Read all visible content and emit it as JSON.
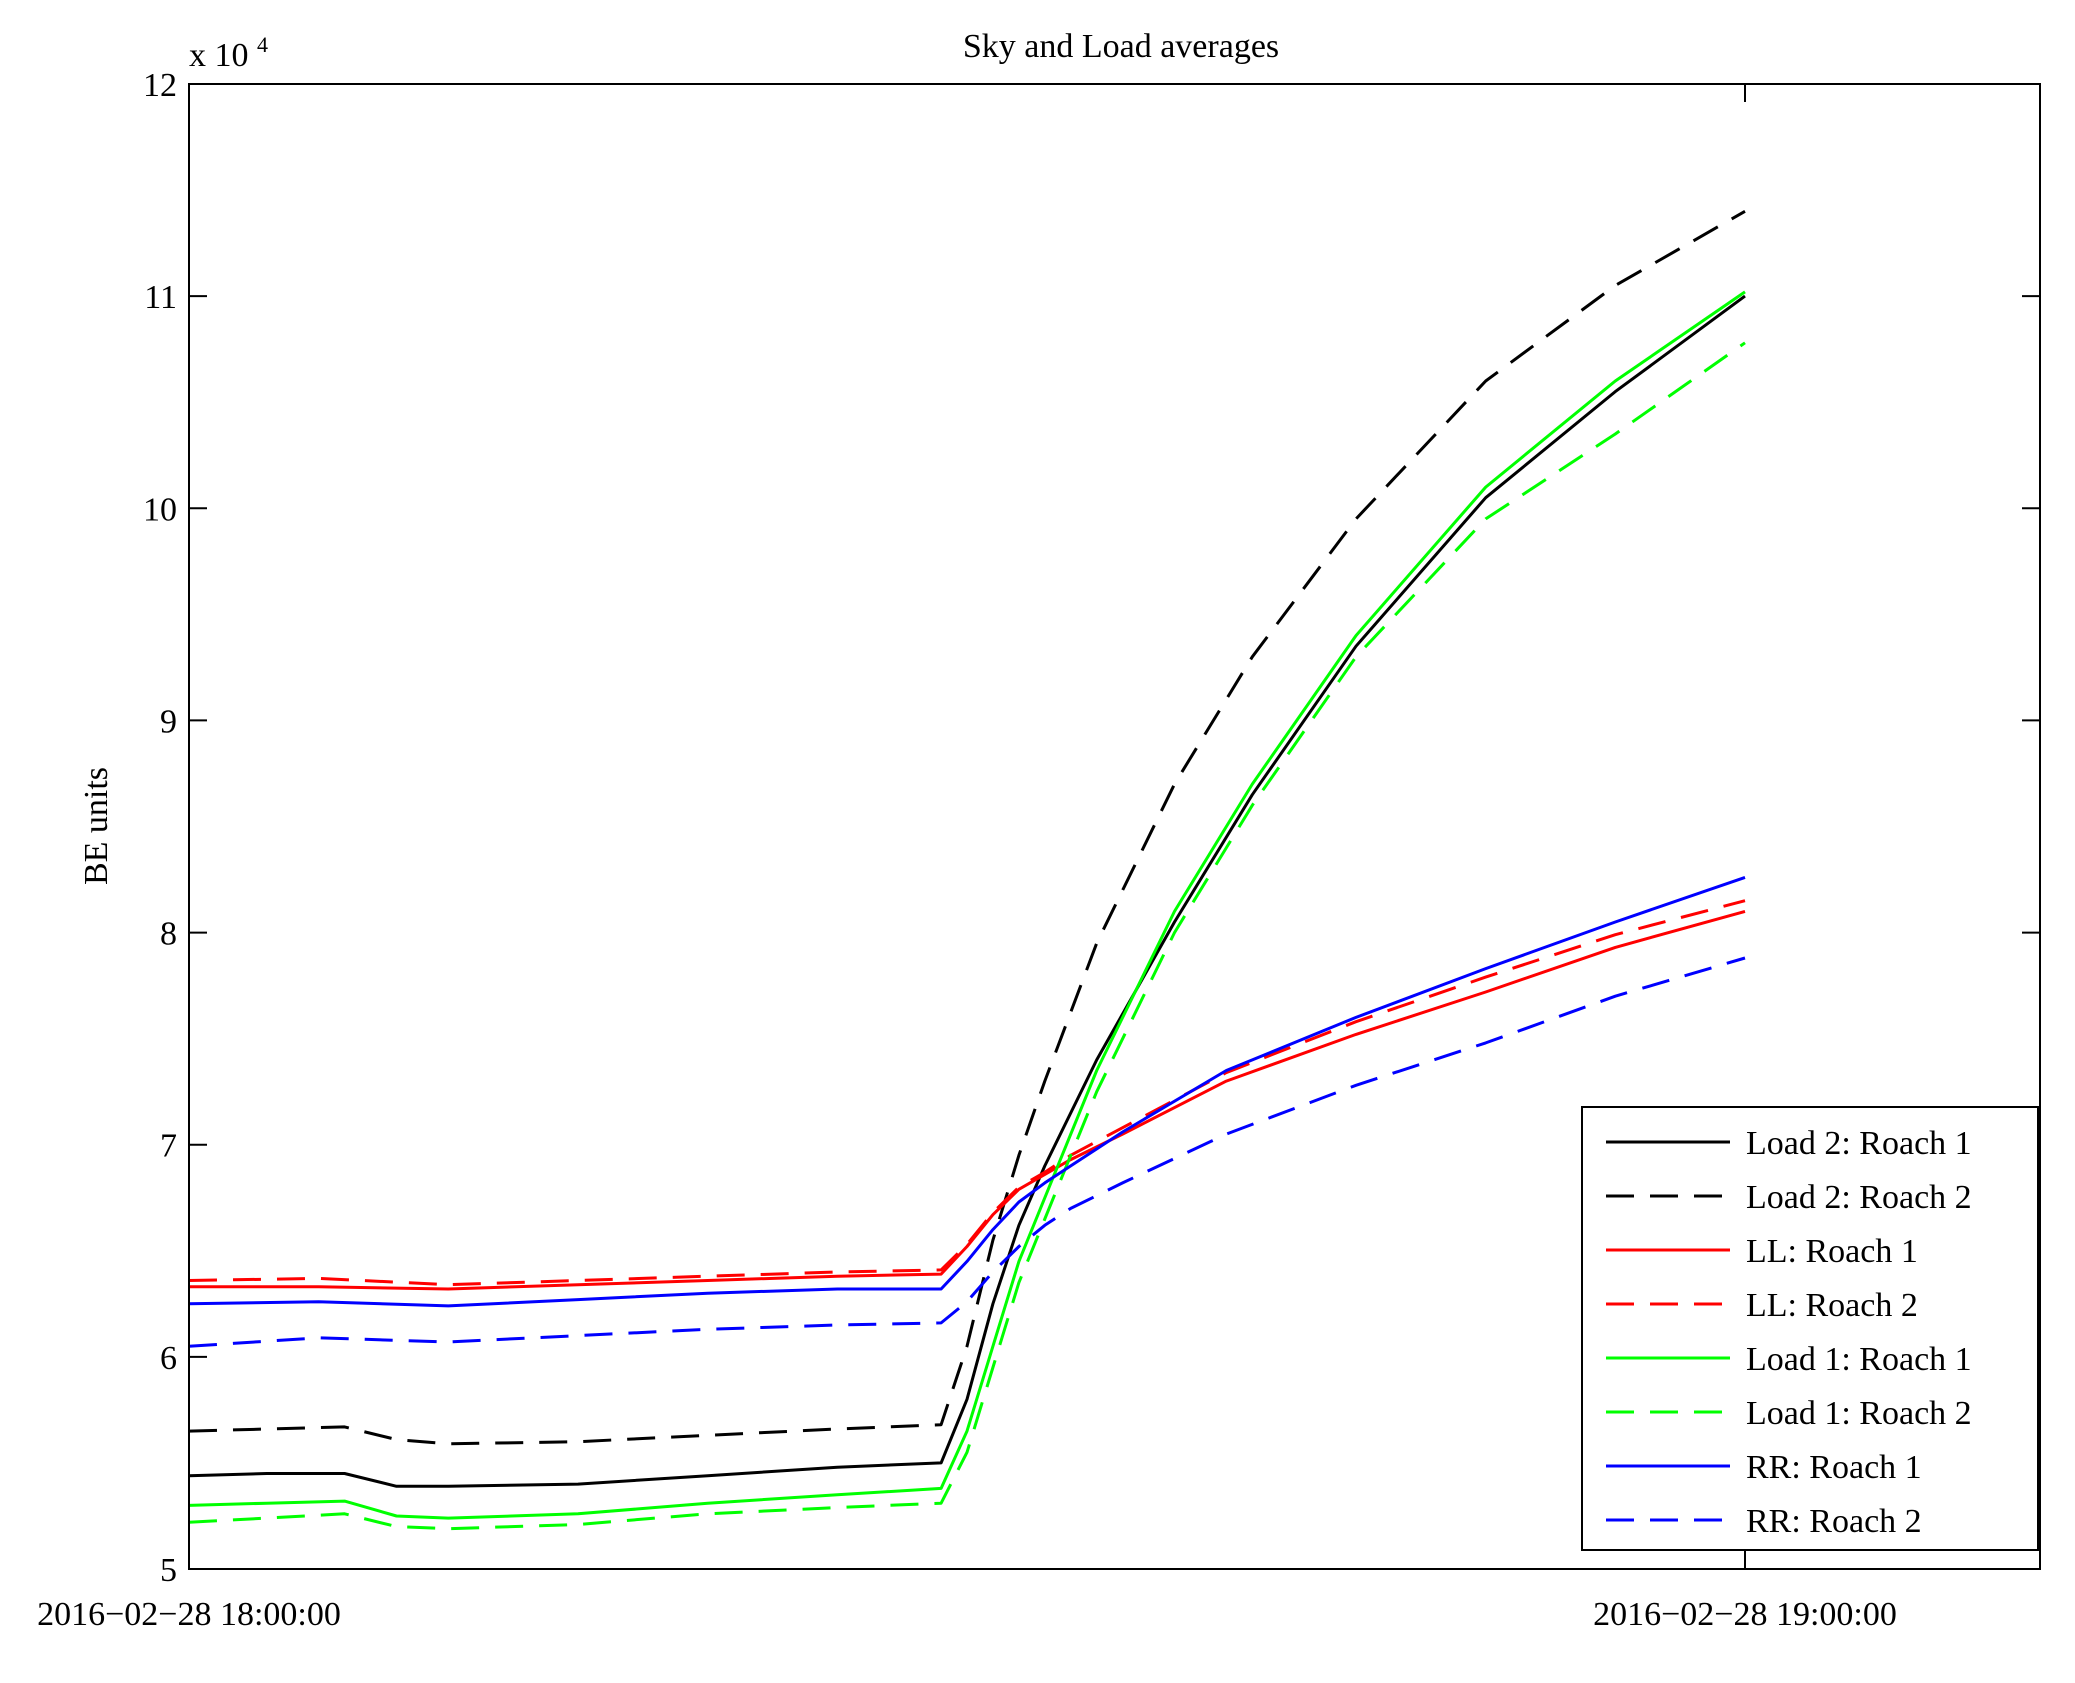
{
  "chart_data": {
    "type": "line",
    "title": "Sky and Load averages",
    "ylabel": "BE units",
    "xlabel": "",
    "y_multiplier_base": "x 10",
    "y_multiplier_exp": "4",
    "ylim": [
      5,
      12
    ],
    "yticks": [
      5,
      6,
      7,
      8,
      9,
      10,
      11,
      12
    ],
    "ytick_labels": [
      "5",
      "6",
      "7",
      "8",
      "9",
      "10",
      "11",
      "12"
    ],
    "xlim": [
      0,
      70
    ],
    "xticks": [
      0,
      60
    ],
    "xtick_labels": [
      "2016−02−28 18:00:00",
      "2016−02−28 19:00:00"
    ],
    "x_units": "minutes after 2016-02-28 18:00:00",
    "legend_position": "bottom-right",
    "series": [
      {
        "name": "Load 2: Roach 1",
        "color": "#000000",
        "dash": "solid",
        "x": [
          0,
          3,
          6,
          8,
          10,
          15,
          20,
          25,
          29,
          30,
          31,
          32,
          33,
          35,
          38,
          41,
          45,
          50,
          55,
          60
        ],
        "y": [
          5.44,
          5.45,
          5.45,
          5.39,
          5.39,
          5.4,
          5.44,
          5.48,
          5.5,
          5.8,
          6.25,
          6.62,
          6.9,
          7.4,
          8.05,
          8.65,
          9.35,
          10.05,
          10.55,
          11.0
        ]
      },
      {
        "name": "Load 2: Roach 2",
        "color": "#000000",
        "dash": "long",
        "x": [
          0,
          3,
          6,
          8,
          10,
          15,
          20,
          25,
          29,
          30,
          31,
          32,
          33,
          35,
          38,
          41,
          45,
          50,
          55,
          60
        ],
        "y": [
          5.65,
          5.66,
          5.67,
          5.61,
          5.59,
          5.6,
          5.63,
          5.66,
          5.68,
          6.05,
          6.55,
          6.95,
          7.3,
          7.95,
          8.7,
          9.3,
          9.95,
          10.6,
          11.05,
          11.4
        ]
      },
      {
        "name": "LL: Roach 1",
        "color": "#ff0000",
        "dash": "solid",
        "x": [
          0,
          5,
          10,
          15,
          20,
          25,
          29,
          30,
          31,
          32,
          33,
          34,
          36,
          40,
          45,
          50,
          55,
          60
        ],
        "y": [
          6.33,
          6.33,
          6.32,
          6.34,
          6.36,
          6.38,
          6.39,
          6.52,
          6.67,
          6.79,
          6.86,
          6.93,
          7.05,
          7.3,
          7.52,
          7.72,
          7.93,
          8.1
        ]
      },
      {
        "name": "LL: Roach 2",
        "color": "#ff0000",
        "dash": "long",
        "x": [
          0,
          5,
          10,
          15,
          20,
          25,
          29,
          30,
          31,
          32,
          33,
          34,
          36,
          40,
          45,
          50,
          55,
          60
        ],
        "y": [
          6.36,
          6.37,
          6.34,
          6.36,
          6.38,
          6.4,
          6.41,
          6.53,
          6.68,
          6.8,
          6.87,
          6.95,
          7.08,
          7.34,
          7.58,
          7.79,
          7.99,
          8.15
        ]
      },
      {
        "name": "Load 1: Roach 1",
        "color": "#00ff00",
        "dash": "solid",
        "x": [
          0,
          3,
          6,
          8,
          10,
          15,
          20,
          25,
          29,
          30,
          31,
          32,
          33,
          35,
          38,
          41,
          45,
          50,
          55,
          60
        ],
        "y": [
          5.3,
          5.31,
          5.32,
          5.25,
          5.24,
          5.26,
          5.31,
          5.35,
          5.38,
          5.65,
          6.05,
          6.45,
          6.75,
          7.35,
          8.1,
          8.7,
          9.4,
          10.1,
          10.6,
          11.02
        ]
      },
      {
        "name": "Load 1: Roach 2",
        "color": "#00ff00",
        "dash": "long",
        "x": [
          0,
          3,
          6,
          8,
          10,
          15,
          20,
          25,
          29,
          30,
          31,
          32,
          33,
          35,
          38,
          41,
          45,
          50,
          55,
          60
        ],
        "y": [
          5.22,
          5.24,
          5.26,
          5.2,
          5.19,
          5.21,
          5.26,
          5.29,
          5.31,
          5.55,
          5.95,
          6.35,
          6.65,
          7.25,
          8.0,
          8.6,
          9.3,
          9.95,
          10.35,
          10.78
        ]
      },
      {
        "name": "RR: Roach 1",
        "color": "#0000ff",
        "dash": "solid",
        "x": [
          0,
          5,
          10,
          15,
          20,
          25,
          29,
          30,
          31,
          32,
          33,
          34,
          36,
          40,
          45,
          50,
          55,
          60
        ],
        "y": [
          6.25,
          6.26,
          6.24,
          6.27,
          6.3,
          6.32,
          6.32,
          6.45,
          6.6,
          6.73,
          6.82,
          6.9,
          7.06,
          7.35,
          7.6,
          7.83,
          8.05,
          8.26
        ]
      },
      {
        "name": "RR: Roach 2",
        "color": "#0000ff",
        "dash": "long",
        "x": [
          0,
          5,
          10,
          15,
          20,
          25,
          29,
          30,
          31,
          32,
          33,
          34,
          36,
          40,
          45,
          50,
          55,
          60
        ],
        "y": [
          6.05,
          6.09,
          6.07,
          6.1,
          6.13,
          6.15,
          6.16,
          6.26,
          6.4,
          6.52,
          6.62,
          6.7,
          6.82,
          7.05,
          7.28,
          7.48,
          7.7,
          7.88
        ]
      }
    ]
  }
}
